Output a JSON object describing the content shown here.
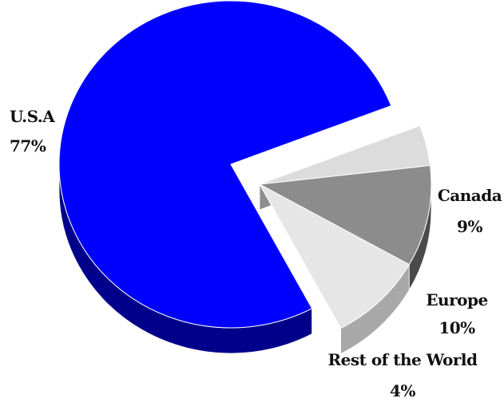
{
  "chart_data": {
    "type": "pie",
    "title": "",
    "style": "3d-exploded",
    "slices": [
      {
        "name": "U.S.A",
        "value": 77,
        "label": "77%",
        "color": "#0000FF",
        "side_color": "#00008B",
        "exploded": false
      },
      {
        "name": "Canada",
        "value": 9,
        "label": "9%",
        "color": "#E6E6E6",
        "side_color": "#A8A8A8",
        "exploded": true
      },
      {
        "name": "Europe",
        "value": 10,
        "label": "10%",
        "color": "#8C8C8C",
        "side_color": "#4A4A4A",
        "exploded": true
      },
      {
        "name": "Rest of the World",
        "value": 4,
        "label": "4%",
        "color": "#DCDCDC",
        "side_color": "#8E8E8E",
        "exploded": true
      }
    ]
  }
}
